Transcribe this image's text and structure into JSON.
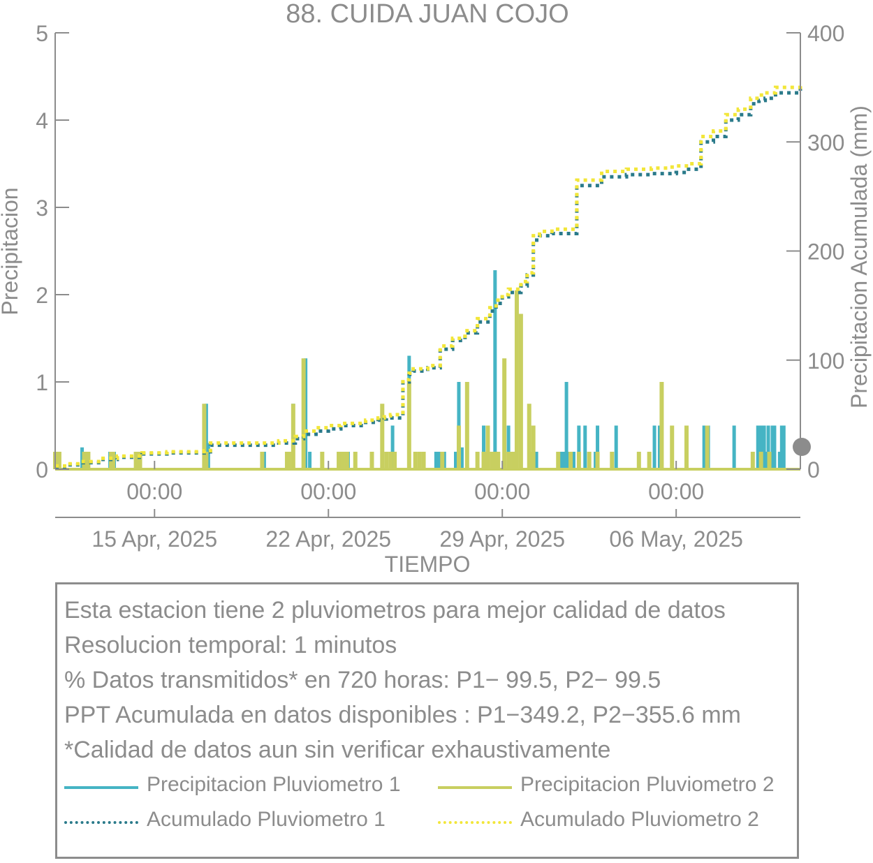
{
  "chart_data": {
    "type": "bar",
    "title": "88. CUIDA JUAN COJO",
    "xlabel": "TIEMPO",
    "ylabel": "Precipitacion",
    "y2label": "Precipitacion Acumulada (mm)",
    "xlim": [
      "2025-04-11T00:00",
      "2025-05-11T00:00"
    ],
    "ylim": [
      0,
      5
    ],
    "y2lim": [
      0,
      400
    ],
    "yticks": [
      "0",
      "1",
      "2",
      "3",
      "4",
      "5"
    ],
    "y2ticks": [
      "0",
      "100",
      "200",
      "300",
      "400"
    ],
    "xticks_time": [
      "00:00",
      "00:00",
      "00:00",
      "00:00"
    ],
    "xticks_date": [
      "15 Apr, 2025",
      "22 Apr, 2025",
      "29 Apr, 2025",
      "06 May, 2025"
    ],
    "xtick_dates": [
      "2025-04-15",
      "2025-04-22",
      "2025-04-29",
      "2025-05-06"
    ],
    "grid": false,
    "colors": {
      "p1": "#45b4c4",
      "p2": "#c8cf60",
      "acc1": "#2a7a8a",
      "acc2": "#f2e63a",
      "axis": "#8c8c8c"
    },
    "series": [
      {
        "name": "Precipitacion Pluviometro 1",
        "kind": "bar",
        "x": [
          "2025-04-11T01:00",
          "2025-04-12T02:00",
          "2025-04-12T06:00",
          "2025-04-13T05:00",
          "2025-04-13T07:00",
          "2025-04-13T09:00",
          "2025-04-14T06:00",
          "2025-04-14T08:00",
          "2025-04-17T00:00",
          "2025-04-17T02:00",
          "2025-04-17T04:00",
          "2025-04-19T10:00",
          "2025-04-20T14:00",
          "2025-04-21T02:00",
          "2025-04-21T06:00",
          "2025-04-22T19:00",
          "2025-04-24T08:00",
          "2025-04-24T14:00",
          "2025-04-25T06:00",
          "2025-04-26T08:00",
          "2025-04-26T10:00",
          "2025-04-26T12:00",
          "2025-04-26T14:00",
          "2025-04-26T16:00",
          "2025-04-27T03:00",
          "2025-04-27T06:00",
          "2025-04-27T09:00",
          "2025-04-28T06:00",
          "2025-04-28T17:00",
          "2025-04-29T06:00",
          "2025-04-30T03:00",
          "2025-04-30T05:00",
          "2025-04-30T07:00",
          "2025-04-30T09:00",
          "2025-05-01T08:00",
          "2025-05-01T11:00",
          "2025-05-01T14:00",
          "2025-05-01T17:00",
          "2025-05-01T19:00",
          "2025-05-01T21:00",
          "2025-05-02T02:00",
          "2025-05-02T08:00",
          "2025-05-02T18:00",
          "2025-05-02T20:00",
          "2025-05-03T14:00",
          "2025-05-05T03:00",
          "2025-05-05T08:00",
          "2025-05-07T03:00",
          "2025-05-07T05:00",
          "2025-05-07T07:00",
          "2025-05-08T08:00",
          "2025-05-09T07:00",
          "2025-05-09T09:00",
          "2025-05-09T11:00",
          "2025-05-09T13:00",
          "2025-05-09T15:00",
          "2025-05-09T17:00",
          "2025-05-09T19:00",
          "2025-05-09T21:00",
          "2025-05-09T23:00",
          "2025-05-10T04:00",
          "2025-05-10T06:00",
          "2025-05-10T08:00"
        ],
        "values": [
          0.2,
          0.25,
          0.2,
          0.2,
          0.2,
          0.2,
          0.1,
          0.2,
          0.2,
          0.75,
          0.3,
          0.2,
          0.75,
          1.27,
          0.2,
          0.2,
          0.2,
          0.5,
          1.3,
          0.2,
          0.2,
          0.2,
          0.2,
          0.2,
          0.2,
          1.0,
          0.25,
          0.5,
          2.28,
          0.5,
          0.2,
          0.2,
          0.2,
          0.2,
          0.2,
          0.2,
          1.0,
          0.2,
          0.2,
          0.2,
          0.5,
          0.5,
          0.2,
          0.5,
          0.5,
          0.5,
          0.5,
          0.5,
          0.5,
          0.5,
          0.5,
          0.5,
          0.5,
          0.5,
          0.5,
          0.2,
          0.5,
          0.2,
          0.5,
          0.5,
          0.2,
          0.5,
          0.5
        ]
      },
      {
        "name": "Precipitacion Pluviometro 2",
        "kind": "bar",
        "x": [
          "2025-04-11T00:00",
          "2025-04-11T02:00",
          "2025-04-11T04:00",
          "2025-04-12T04:00",
          "2025-04-12T08:00",
          "2025-04-13T06:00",
          "2025-04-13T08:00",
          "2025-04-14T06:00",
          "2025-04-14T08:00",
          "2025-04-14T10:00",
          "2025-04-17T00:00",
          "2025-04-17T02:00",
          "2025-04-19T08:00",
          "2025-04-20T08:00",
          "2025-04-20T10:00",
          "2025-04-20T14:00",
          "2025-04-21T00:00",
          "2025-04-21T18:00",
          "2025-04-22T10:00",
          "2025-04-22T14:00",
          "2025-04-22T18:00",
          "2025-04-23T02:00",
          "2025-04-23T18:00",
          "2025-04-24T04:00",
          "2025-04-24T08:00",
          "2025-04-24T12:00",
          "2025-04-24T16:00",
          "2025-04-25T06:00",
          "2025-04-25T12:00",
          "2025-04-25T16:00",
          "2025-04-25T20:00",
          "2025-04-26T14:00",
          "2025-04-27T06:00",
          "2025-04-27T14:00",
          "2025-04-28T00:00",
          "2025-04-28T06:00",
          "2025-04-28T10:00",
          "2025-04-28T14:00",
          "2025-04-28T17:00",
          "2025-04-28T20:00",
          "2025-04-29T02:00",
          "2025-04-29T06:00",
          "2025-04-29T10:00",
          "2025-04-29T14:00",
          "2025-04-29T18:00",
          "2025-04-30T02:00",
          "2025-04-30T03:00",
          "2025-04-30T04:00",
          "2025-04-30T06:00",
          "2025-05-01T06:00",
          "2025-05-01T18:00",
          "2025-05-02T02:00",
          "2025-05-02T12:00",
          "2025-05-02T20:00",
          "2025-05-03T10:00",
          "2025-05-04T12:00",
          "2025-05-04T22:00",
          "2025-05-05T10:00",
          "2025-05-05T20:00",
          "2025-05-06T10:00",
          "2025-05-07T06:00",
          "2025-05-09T02:00",
          "2025-05-09T10:00",
          "2025-05-09T18:00"
        ],
        "values": [
          0.2,
          0.2,
          0.2,
          0.2,
          0.2,
          0.2,
          0.2,
          0.2,
          0.2,
          0.2,
          0.75,
          0.2,
          0.2,
          0.2,
          0.2,
          0.75,
          1.27,
          0.2,
          0.2,
          0.2,
          0.2,
          0.2,
          0.2,
          0.75,
          0.2,
          0.2,
          0.2,
          1.0,
          0.2,
          0.2,
          0.2,
          0.2,
          0.5,
          1.0,
          0.2,
          0.2,
          0.5,
          0.2,
          0.2,
          0.2,
          1.27,
          0.2,
          0.2,
          2.05,
          1.78,
          0.75,
          0.2,
          0.2,
          0.5,
          0.2,
          0.2,
          0.2,
          0.2,
          0.2,
          0.2,
          0.2,
          0.2,
          1.0,
          0.5,
          0.5,
          0.5,
          0.2,
          0.2,
          0.2
        ]
      },
      {
        "name": "Acumulado Pluviometro 1",
        "kind": "line",
        "x": [
          "2025-04-11T00:00",
          "2025-04-11T12:00",
          "2025-04-12T00:00",
          "2025-04-12T18:00",
          "2025-04-13T12:00",
          "2025-04-14T12:00",
          "2025-04-15T12:00",
          "2025-04-16T12:00",
          "2025-04-17T00:00",
          "2025-04-17T06:00",
          "2025-04-18T12:00",
          "2025-04-19T12:00",
          "2025-04-20T00:00",
          "2025-04-20T16:00",
          "2025-04-21T00:00",
          "2025-04-21T12:00",
          "2025-04-22T00:00",
          "2025-04-22T12:00",
          "2025-04-23T12:00",
          "2025-04-24T00:00",
          "2025-04-24T06:00",
          "2025-04-24T08:00",
          "2025-04-24T12:00",
          "2025-04-25T00:00",
          "2025-04-25T06:00",
          "2025-04-25T10:00",
          "2025-04-26T00:00",
          "2025-04-26T12:00",
          "2025-04-27T00:00",
          "2025-04-27T12:00",
          "2025-04-28T00:00",
          "2025-04-28T12:00",
          "2025-04-28T18:00",
          "2025-04-29T00:00",
          "2025-04-29T06:00",
          "2025-04-29T18:00",
          "2025-04-30T00:00",
          "2025-04-30T06:00",
          "2025-04-30T12:00",
          "2025-05-01T00:00",
          "2025-05-02T00:00",
          "2025-05-03T00:00",
          "2025-05-04T00:00",
          "2025-05-05T00:00",
          "2025-05-05T12:00",
          "2025-05-05T18:00",
          "2025-05-06T00:00",
          "2025-05-06T12:00",
          "2025-05-07T00:00",
          "2025-05-07T12:00",
          "2025-05-08T00:00",
          "2025-05-08T12:00",
          "2025-05-09T00:00",
          "2025-05-09T08:00",
          "2025-05-09T14:00",
          "2025-05-10T00:00",
          "2025-05-11T00:00"
        ],
        "values": [
          2,
          4,
          6,
          9,
          11,
          14,
          15,
          15,
          16,
          22,
          22,
          22,
          24,
          28,
          32,
          35,
          37,
          40,
          43,
          45,
          46,
          47,
          47,
          80,
          87,
          90,
          93,
          110,
          118,
          125,
          135,
          145,
          152,
          158,
          162,
          168,
          178,
          210,
          214,
          216,
          260,
          268,
          270,
          271,
          271,
          271,
          272,
          275,
          300,
          305,
          320,
          325,
          335,
          338,
          340,
          345,
          350
        ]
      },
      {
        "name": "Acumulado Pluviometro 2",
        "kind": "line",
        "x": [
          "2025-04-11T00:00",
          "2025-04-11T12:00",
          "2025-04-12T00:00",
          "2025-04-12T18:00",
          "2025-04-13T12:00",
          "2025-04-14T12:00",
          "2025-04-15T12:00",
          "2025-04-16T12:00",
          "2025-04-17T00:00",
          "2025-04-17T06:00",
          "2025-04-18T12:00",
          "2025-04-19T12:00",
          "2025-04-20T00:00",
          "2025-04-20T16:00",
          "2025-04-21T00:00",
          "2025-04-21T12:00",
          "2025-04-22T00:00",
          "2025-04-22T12:00",
          "2025-04-23T12:00",
          "2025-04-24T00:00",
          "2025-04-24T06:00",
          "2025-04-24T08:00",
          "2025-04-24T12:00",
          "2025-04-25T00:00",
          "2025-04-25T06:00",
          "2025-04-25T10:00",
          "2025-04-26T00:00",
          "2025-04-26T12:00",
          "2025-04-27T00:00",
          "2025-04-27T12:00",
          "2025-04-28T00:00",
          "2025-04-28T12:00",
          "2025-04-28T18:00",
          "2025-04-29T00:00",
          "2025-04-29T06:00",
          "2025-04-29T18:00",
          "2025-04-30T00:00",
          "2025-04-30T06:00",
          "2025-04-30T12:00",
          "2025-05-01T00:00",
          "2025-05-02T00:00",
          "2025-05-03T00:00",
          "2025-05-04T00:00",
          "2025-05-05T00:00",
          "2025-05-05T12:00",
          "2025-05-05T18:00",
          "2025-05-06T00:00",
          "2025-05-06T12:00",
          "2025-05-07T00:00",
          "2025-05-07T12:00",
          "2025-05-08T00:00",
          "2025-05-08T12:00",
          "2025-05-09T00:00",
          "2025-05-09T08:00",
          "2025-05-09T14:00",
          "2025-05-10T00:00",
          "2025-05-11T00:00"
        ],
        "values": [
          3,
          5,
          7,
          10,
          12,
          15,
          16,
          16,
          17,
          24,
          24,
          24,
          26,
          30,
          35,
          38,
          40,
          42,
          45,
          47,
          48,
          49,
          50,
          82,
          88,
          92,
          95,
          113,
          120,
          127,
          138,
          148,
          155,
          160,
          165,
          172,
          180,
          214,
          218,
          220,
          265,
          273,
          275,
          276,
          276,
          277,
          278,
          280,
          305,
          310,
          325,
          330,
          340,
          343,
          345,
          350,
          355
        ]
      }
    ]
  },
  "info": {
    "lines": [
      "Esta estacion tiene 2 pluviometros para mejor calidad de datos",
      "Resolucion temporal: 1 minutos",
      "% Datos transmitidos* en 720 horas: P1− 99.5, P2− 99.5",
      "PPT Acumulada en datos disponibles : P1−349.2, P2−355.6 mm",
      "*Calidad de datos aun sin verificar exhaustivamente"
    ]
  },
  "legend": {
    "p1": "Precipitacion Pluviometro 1",
    "p2": "Precipitacion Pluviometro 2",
    "acc1": "Acumulado Pluviometro 1",
    "acc2": "Acumulado Pluviometro 2"
  }
}
